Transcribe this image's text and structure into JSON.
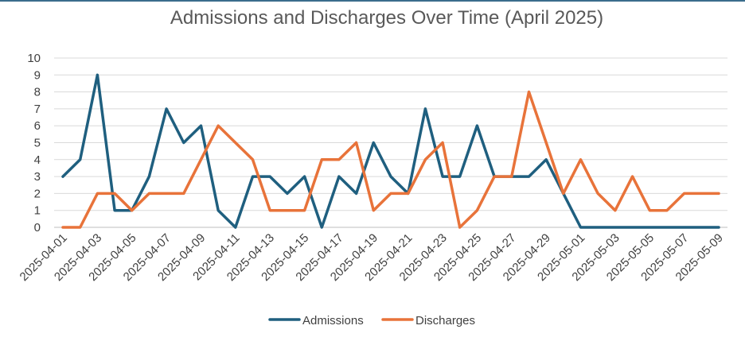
{
  "chart_data": {
    "type": "line",
    "title": "Admissions and Discharges Over Time (April 2025)",
    "xlabel": "",
    "ylabel": "",
    "ylim": [
      0,
      10
    ],
    "yticks": [
      0,
      1,
      2,
      3,
      4,
      5,
      6,
      7,
      8,
      9,
      10
    ],
    "grid": true,
    "legend_position": "bottom",
    "x": [
      "2025-04-01",
      "2025-04-02",
      "2025-04-03",
      "2025-04-04",
      "2025-04-05",
      "2025-04-06",
      "2025-04-07",
      "2025-04-08",
      "2025-04-09",
      "2025-04-10",
      "2025-04-11",
      "2025-04-12",
      "2025-04-13",
      "2025-04-14",
      "2025-04-15",
      "2025-04-16",
      "2025-04-17",
      "2025-04-18",
      "2025-04-19",
      "2025-04-20",
      "2025-04-21",
      "2025-04-22",
      "2025-04-23",
      "2025-04-24",
      "2025-04-25",
      "2025-04-26",
      "2025-04-27",
      "2025-04-28",
      "2025-04-29",
      "2025-04-30",
      "2025-05-01",
      "2025-05-02",
      "2025-05-03",
      "2025-05-04",
      "2025-05-05",
      "2025-05-06",
      "2025-05-07",
      "2025-05-08",
      "2025-05-09"
    ],
    "xtick_labels": [
      "2025-04-01",
      "2025-04-03",
      "2025-04-05",
      "2025-04-07",
      "2025-04-09",
      "2025-04-11",
      "2025-04-13",
      "2025-04-15",
      "2025-04-17",
      "2025-04-19",
      "2025-04-21",
      "2025-04-23",
      "2025-04-25",
      "2025-04-27",
      "2025-04-29",
      "2025-05-01",
      "2025-05-03",
      "2025-05-05",
      "2025-05-07",
      "2025-05-09"
    ],
    "series": [
      {
        "name": "Admissions",
        "color": "#1f5f7f",
        "values": [
          3,
          4,
          9,
          1,
          1,
          3,
          7,
          5,
          6,
          1,
          0,
          3,
          3,
          2,
          3,
          0,
          3,
          2,
          5,
          3,
          2,
          7,
          3,
          3,
          6,
          3,
          3,
          3,
          4,
          2,
          0,
          0,
          0,
          0,
          0,
          0,
          0,
          0,
          0
        ]
      },
      {
        "name": "Discharges",
        "color": "#e8733a",
        "values": [
          0,
          0,
          2,
          2,
          1,
          2,
          2,
          2,
          4,
          6,
          5,
          4,
          1,
          1,
          1,
          4,
          4,
          5,
          1,
          2,
          2,
          4,
          5,
          0,
          1,
          3,
          3,
          8,
          5,
          2,
          4,
          2,
          1,
          3,
          1,
          1,
          2,
          2,
          2
        ]
      }
    ]
  }
}
